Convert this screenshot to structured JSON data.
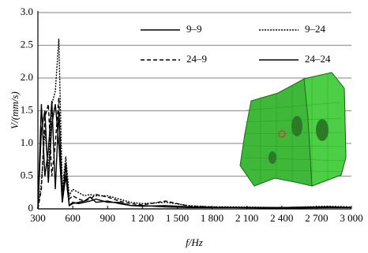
{
  "chart_data": {
    "type": "line",
    "y_label": "V/(mm/s)",
    "x_label": "f/Hz",
    "x": [
      300,
      330,
      360,
      390,
      420,
      450,
      480,
      510,
      540,
      570,
      600,
      650,
      700,
      750,
      800,
      900,
      1000,
      1100,
      1200,
      1400,
      1600,
      1800,
      2000,
      2400,
      2800,
      3000
    ],
    "series": [
      {
        "name": "9–9",
        "color": "#000000",
        "dash": "solid",
        "values": [
          0,
          1.6,
          0.5,
          0.9,
          1.65,
          0.3,
          1.5,
          0.1,
          0.7,
          0.05,
          0.1,
          0.08,
          0.1,
          0.12,
          0.15,
          0.1,
          0.1,
          0.05,
          0.05,
          0.03,
          0.02,
          0.02,
          0.02,
          0.01,
          0.02,
          0.02
        ]
      },
      {
        "name": "9–24",
        "color": "#000000",
        "dash": "dotted",
        "values": [
          0,
          0.4,
          1.2,
          0.6,
          1.6,
          1.8,
          2.6,
          0.3,
          0.8,
          0.2,
          0.3,
          0.25,
          0.2,
          0.22,
          0.2,
          0.2,
          0.15,
          0.1,
          0.08,
          0.1,
          0.05,
          0.03,
          0.03,
          0.02,
          0.04,
          0.03
        ]
      },
      {
        "name": "24–9",
        "color": "#000000",
        "dash": "dashed",
        "values": [
          0,
          0.3,
          1.4,
          1.6,
          0.5,
          1.0,
          1.7,
          0.2,
          0.6,
          0.15,
          0.2,
          0.15,
          0.12,
          0.15,
          0.22,
          0.18,
          0.12,
          0.08,
          0.06,
          0.12,
          0.04,
          0.03,
          0.02,
          0.02,
          0.03,
          0.02
        ]
      },
      {
        "name": "24–24",
        "color": "#000000",
        "dash": "solid",
        "values": [
          0,
          1.2,
          1.5,
          0.4,
          1.3,
          1.6,
          1.0,
          0.1,
          0.5,
          0.05,
          0.08,
          0.1,
          0.12,
          0.18,
          0.1,
          0.12,
          0.08,
          0.05,
          0.04,
          0.05,
          0.03,
          0.02,
          0.02,
          0.02,
          0.03,
          0.02
        ]
      }
    ],
    "xlim": [
      300,
      3000
    ],
    "xticks": [
      300,
      600,
      900,
      {
        "value": 1200,
        "label": "1 200"
      },
      {
        "value": 1500,
        "label": "1 500"
      },
      {
        "value": 1800,
        "label": "1 800"
      },
      {
        "value": 2100,
        "label": "2 100"
      },
      {
        "value": 2400,
        "label": "2 400"
      },
      {
        "value": 2700,
        "label": "2 700"
      },
      {
        "value": 3000,
        "label": "3 000"
      }
    ],
    "ylim": [
      0,
      3
    ],
    "yticks": [
      0,
      0.5,
      {
        "value": 1,
        "label": "1.0"
      },
      1.5,
      {
        "value": 2,
        "label": "2.0"
      },
      2.5,
      {
        "value": 3,
        "label": "3.0"
      }
    ],
    "grid": true,
    "legend": "top"
  }
}
